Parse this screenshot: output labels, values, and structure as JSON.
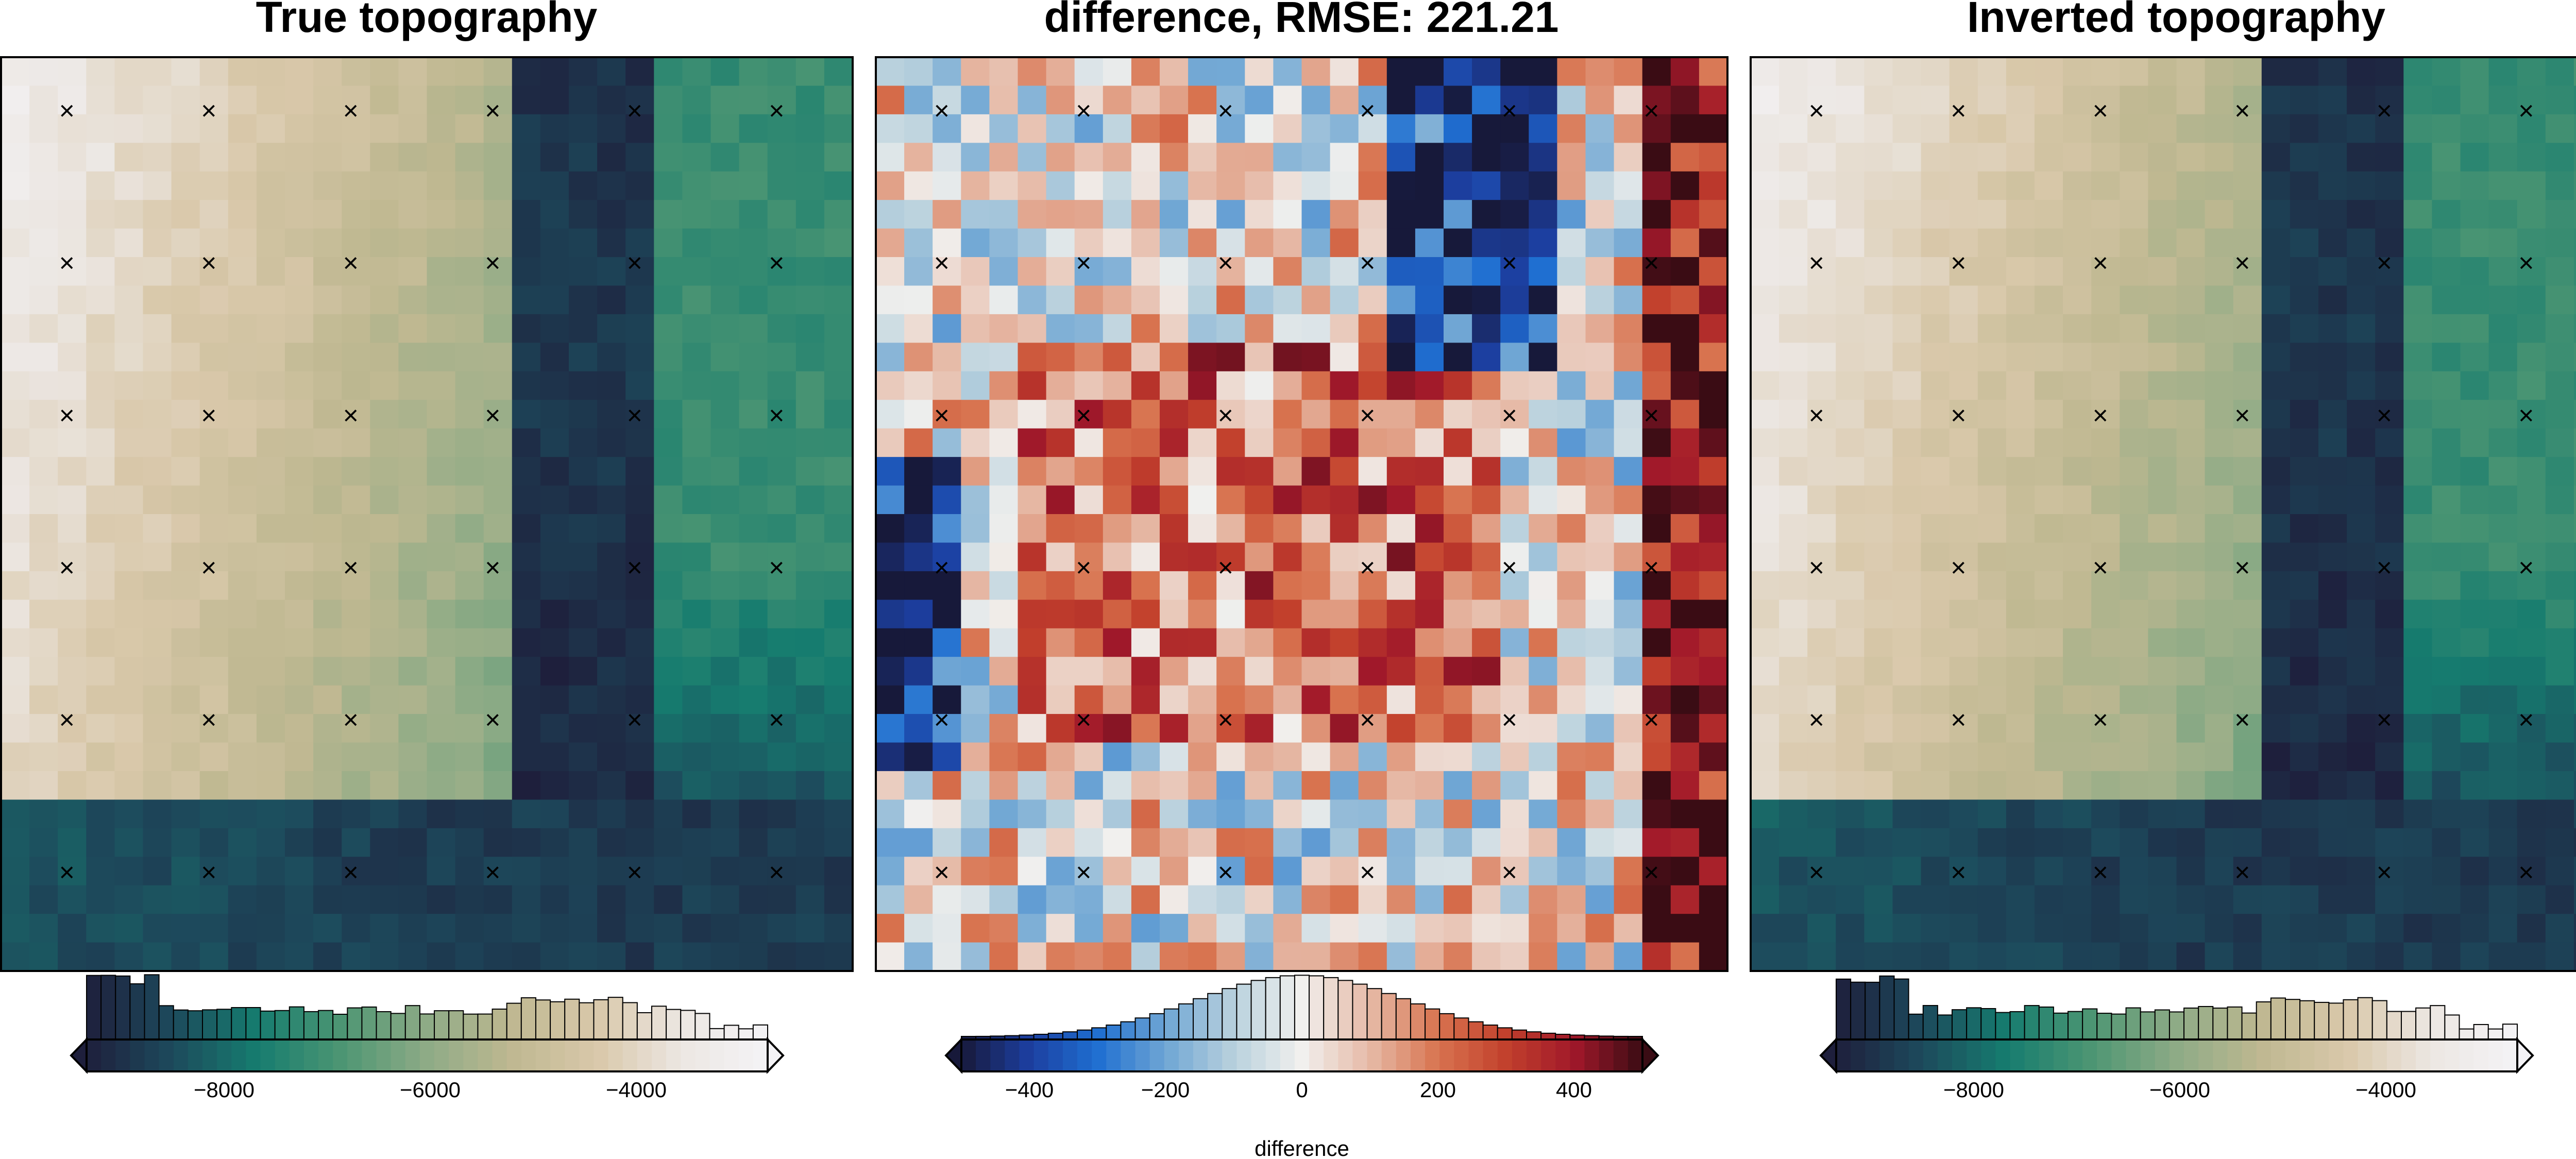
{
  "chart_data": [
    {
      "type": "heatmap",
      "title": "True topography",
      "colormap": "topography (navy-teal-green-tan-white)",
      "value_range": [
        -9000,
        -2400
      ],
      "colorbar": {
        "ticks": [
          -8000,
          -6000,
          -4000
        ],
        "tick_labels": [
          "−8000",
          "−6000",
          "−4000"
        ],
        "label": "",
        "histogram": true,
        "extend": "both"
      },
      "markers": {
        "symbol": "×",
        "columns": 6,
        "rows": 6
      }
    },
    {
      "type": "heatmap",
      "title": "difference, RMSE: 221.21",
      "colormap": "diverging (dark navy-blue-white-red-dark red)",
      "value_range": [
        -500,
        500
      ],
      "colorbar": {
        "ticks": [
          -400,
          -200,
          0,
          200,
          400
        ],
        "tick_labels": [
          "−400",
          "−200",
          "0",
          "200",
          "400"
        ],
        "label": "difference",
        "histogram": true,
        "extend": "both"
      },
      "markers": {
        "symbol": "×",
        "columns": 6,
        "rows": 6
      }
    },
    {
      "type": "heatmap",
      "title": "Inverted topography",
      "colormap": "topography (navy-teal-green-tan-white)",
      "value_range": [
        -9000,
        -2400
      ],
      "colorbar": {
        "ticks": [
          -8000,
          -6000,
          -4000
        ],
        "tick_labels": [
          "−8000",
          "−6000",
          "−4000"
        ],
        "label": "",
        "histogram": true,
        "extend": "both"
      },
      "markers": {
        "symbol": "×",
        "columns": 6,
        "rows": 6
      }
    }
  ],
  "colors": {
    "topo_stops": [
      "#1e1f3c",
      "#1d4a5c",
      "#167c6f",
      "#4d9673",
      "#8eab86",
      "#bfb891",
      "#d9c8aa",
      "#ece7e3",
      "#f4f3f6"
    ],
    "diff_stops": [
      "#17193a",
      "#1c3fa0",
      "#1f6fd1",
      "#6fa6d4",
      "#b9d1dd",
      "#f1f0ee",
      "#e6b9a6",
      "#d8734f",
      "#c2402c",
      "#a0182a",
      "#3a0c14"
    ]
  }
}
